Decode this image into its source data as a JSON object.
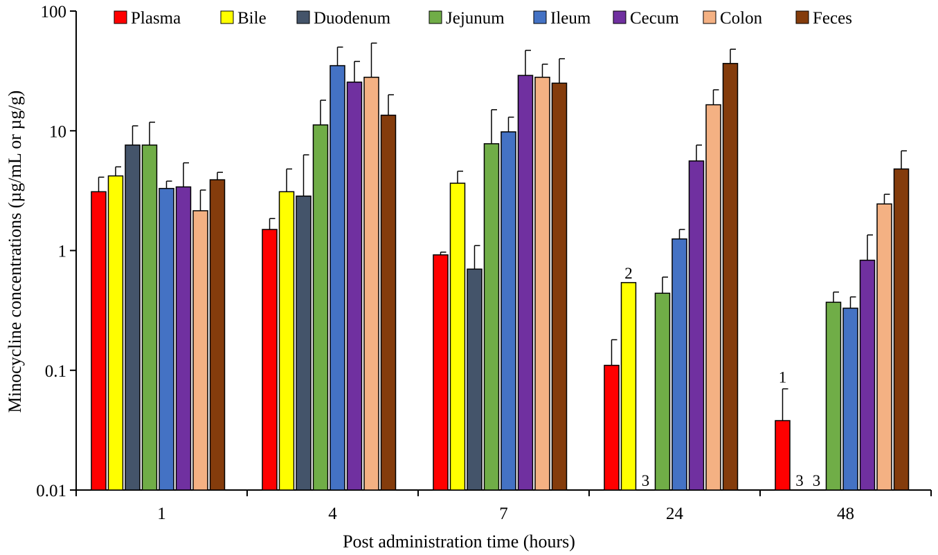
{
  "chart_data": {
    "type": "bar",
    "scale": "log",
    "title": "",
    "xlabel": "Post administration time (hours)",
    "ylabel": "Minocycline concentrations (µg/mL or µg/g)",
    "ylim": [
      0.01,
      100
    ],
    "yticks": [
      "0.01",
      "0.1",
      "1",
      "10",
      "100"
    ],
    "categories": [
      "1",
      "4",
      "7",
      "24",
      "48"
    ],
    "legend_position": "top",
    "series": [
      {
        "name": "Plasma",
        "color": "#ff0000",
        "values": [
          3.1,
          1.5,
          0.92,
          0.11,
          0.038
        ],
        "errors": [
          4.1,
          1.85,
          0.97,
          0.18,
          0.07
        ]
      },
      {
        "name": "Bile",
        "color": "#ffff00",
        "values": [
          4.2,
          3.1,
          3.65,
          0.54,
          null
        ],
        "errors": [
          5.0,
          4.8,
          4.6,
          null,
          null
        ]
      },
      {
        "name": "Duodenum",
        "color": "#44546a",
        "values": [
          7.6,
          2.85,
          0.7,
          null,
          null
        ],
        "errors": [
          11.0,
          6.3,
          1.1,
          null,
          null
        ]
      },
      {
        "name": "Jejunum",
        "color": "#70ad47",
        "values": [
          7.6,
          11.2,
          7.8,
          0.44,
          0.37
        ],
        "errors": [
          11.8,
          18.0,
          15.0,
          0.6,
          0.45
        ]
      },
      {
        "name": "Ileum",
        "color": "#4472c4",
        "values": [
          3.3,
          35.0,
          9.8,
          1.25,
          0.33
        ],
        "errors": [
          3.8,
          50.0,
          13.0,
          1.5,
          0.41
        ]
      },
      {
        "name": "Cecum",
        "color": "#7030a0",
        "values": [
          3.4,
          25.5,
          29.0,
          5.6,
          0.83
        ],
        "errors": [
          5.4,
          38.0,
          47.0,
          7.6,
          1.35
        ]
      },
      {
        "name": "Colon",
        "color": "#f4b183",
        "values": [
          2.15,
          28.0,
          28.0,
          16.5,
          2.45
        ],
        "errors": [
          3.2,
          54.0,
          36.0,
          22.0,
          2.95
        ]
      },
      {
        "name": "Feces",
        "color": "#843c0c",
        "values": [
          3.9,
          13.5,
          25.0,
          36.5,
          4.8
        ],
        "errors": [
          4.5,
          20.0,
          40.0,
          48.0,
          6.8
        ]
      }
    ],
    "annotations": [
      {
        "group": 3,
        "series": 1,
        "text": "2",
        "anchor": "above-bar"
      },
      {
        "group": 3,
        "series": 2,
        "text": "3",
        "anchor": "baseline"
      },
      {
        "group": 4,
        "series": 0,
        "text": "1",
        "anchor": "above-error"
      },
      {
        "group": 4,
        "series": 1,
        "text": "3",
        "anchor": "baseline"
      },
      {
        "group": 4,
        "series": 2,
        "text": "3",
        "anchor": "baseline"
      }
    ]
  }
}
